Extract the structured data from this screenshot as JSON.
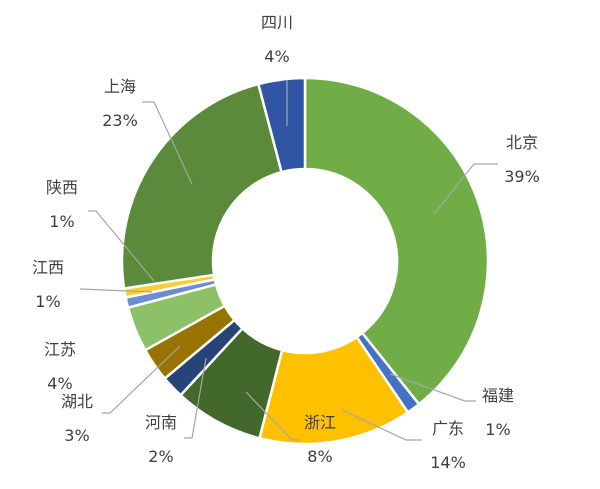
{
  "chart_data": {
    "type": "pie",
    "title": "",
    "slices": [
      {
        "name": "北京",
        "label": "39%",
        "value": 39.3,
        "color": "#70ad47"
      },
      {
        "name": "福建",
        "label": "1%",
        "value": 1.2,
        "color": "#4472c4"
      },
      {
        "name": "广东",
        "label": "14%",
        "value": 13.5,
        "color": "#ffc000"
      },
      {
        "name": "浙江",
        "label": "8%",
        "value": 7.9,
        "color": "#43682b"
      },
      {
        "name": "河南",
        "label": "2%",
        "value": 2.0,
        "color": "#264478"
      },
      {
        "name": "湖北",
        "label": "3%",
        "value": 3.0,
        "color": "#997300"
      },
      {
        "name": "江苏",
        "label": "4%",
        "value": 4.0,
        "color": "#8cc168"
      },
      {
        "name": "江西",
        "label": "1%",
        "value": 0.9,
        "color": "#698ed0"
      },
      {
        "name": "陕西",
        "label": "1%",
        "value": 0.8,
        "color": "#ffcd33"
      },
      {
        "name": "上海",
        "label": "23%",
        "value": 23.3,
        "color": "#5a8a3a"
      },
      {
        "name": "四川",
        "label": "4%",
        "value": 4.1,
        "color": "#2f55a4"
      }
    ]
  }
}
